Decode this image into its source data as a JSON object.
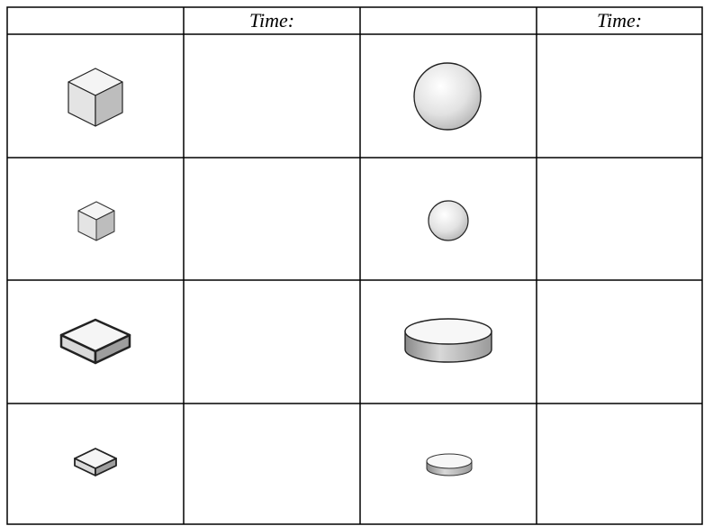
{
  "table": {
    "time_headers": [
      "Time:",
      "Time:"
    ]
  }
}
